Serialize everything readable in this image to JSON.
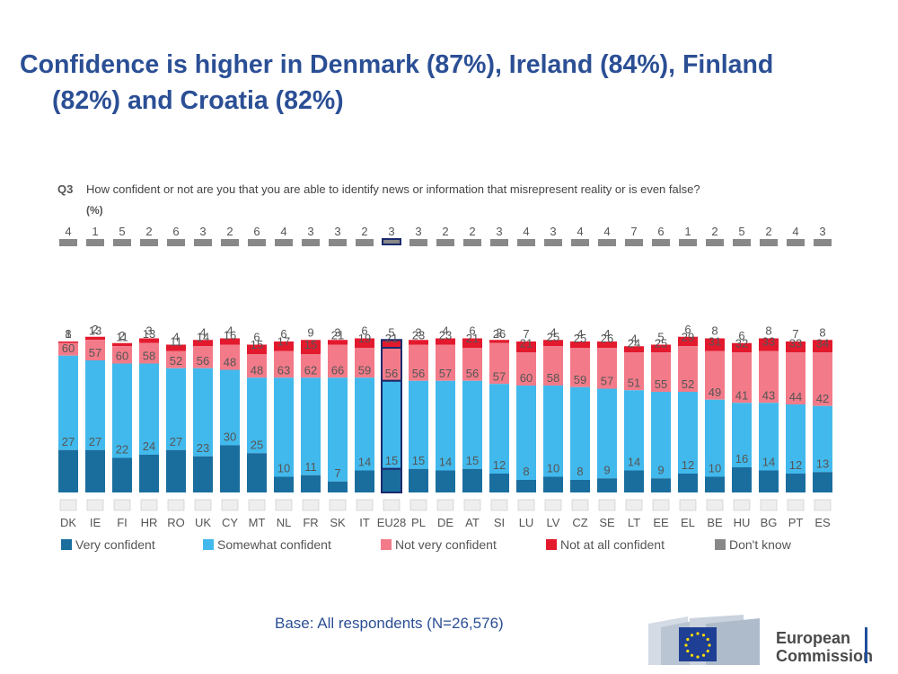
{
  "title": {
    "line1": "Confidence is higher in Denmark (87%), Ireland (84%), Finland",
    "line2": "(82%) and Croatia (82%)"
  },
  "question": {
    "code": "Q3",
    "text": "How confident or not are you that you are able to identify news or information that misrepresent reality or is even false?",
    "unit": "(%)"
  },
  "footnote": "Base: All respondents (N=26,576)",
  "logo": {
    "line1": "European",
    "line2": "Commission"
  },
  "colors": {
    "very": "#1a6e9e",
    "somewhat": "#42b9ec",
    "not_very": "#f37b89",
    "not_at_all": "#e3192d",
    "dont_know": "#888888",
    "highlight_border": "#1a2a6c",
    "label": "#555555",
    "accent": "#2b4f95"
  },
  "chart_data": {
    "type": "bar",
    "stacked": true,
    "highlight": "EU28",
    "categories": [
      "DK",
      "IE",
      "FI",
      "HR",
      "RO",
      "UK",
      "CY",
      "MT",
      "NL",
      "FR",
      "SK",
      "IT",
      "EU28",
      "PL",
      "DE",
      "AT",
      "SI",
      "LU",
      "LV",
      "CZ",
      "SE",
      "LT",
      "EE",
      "EL",
      "BE",
      "HU",
      "BG",
      "PT",
      "ES"
    ],
    "series": [
      {
        "name": "Very confident",
        "values": [
          27,
          27,
          22,
          24,
          27,
          23,
          30,
          25,
          10,
          11,
          7,
          14,
          15,
          15,
          14,
          15,
          12,
          8,
          10,
          8,
          9,
          14,
          9,
          12,
          10,
          16,
          14,
          12,
          13
        ]
      },
      {
        "name": "Somewhat confident",
        "values": [
          60,
          57,
          60,
          58,
          52,
          56,
          48,
          48,
          63,
          62,
          66,
          59,
          56,
          56,
          57,
          56,
          57,
          60,
          58,
          59,
          57,
          51,
          55,
          52,
          49,
          41,
          43,
          44,
          42
        ]
      },
      {
        "name": "Not very confident",
        "values": [
          8,
          13,
          11,
          13,
          11,
          14,
          16,
          15,
          17,
          15,
          21,
          19,
          21,
          23,
          23,
          21,
          26,
          21,
          25,
          25,
          26,
          24,
          25,
          29,
          31,
          32,
          33,
          33,
          34
        ]
      },
      {
        "name": "Not at all confident",
        "values": [
          1,
          2,
          2,
          3,
          4,
          4,
          4,
          6,
          6,
          9,
          3,
          6,
          5,
          3,
          4,
          6,
          2,
          7,
          4,
          4,
          4,
          4,
          5,
          6,
          8,
          6,
          8,
          7,
          8
        ]
      },
      {
        "name": "Don't know",
        "values": [
          4,
          1,
          5,
          2,
          6,
          3,
          2,
          6,
          4,
          3,
          3,
          2,
          3,
          3,
          2,
          2,
          3,
          4,
          3,
          4,
          4,
          7,
          6,
          1,
          2,
          5,
          2,
          4,
          3
        ]
      }
    ]
  }
}
